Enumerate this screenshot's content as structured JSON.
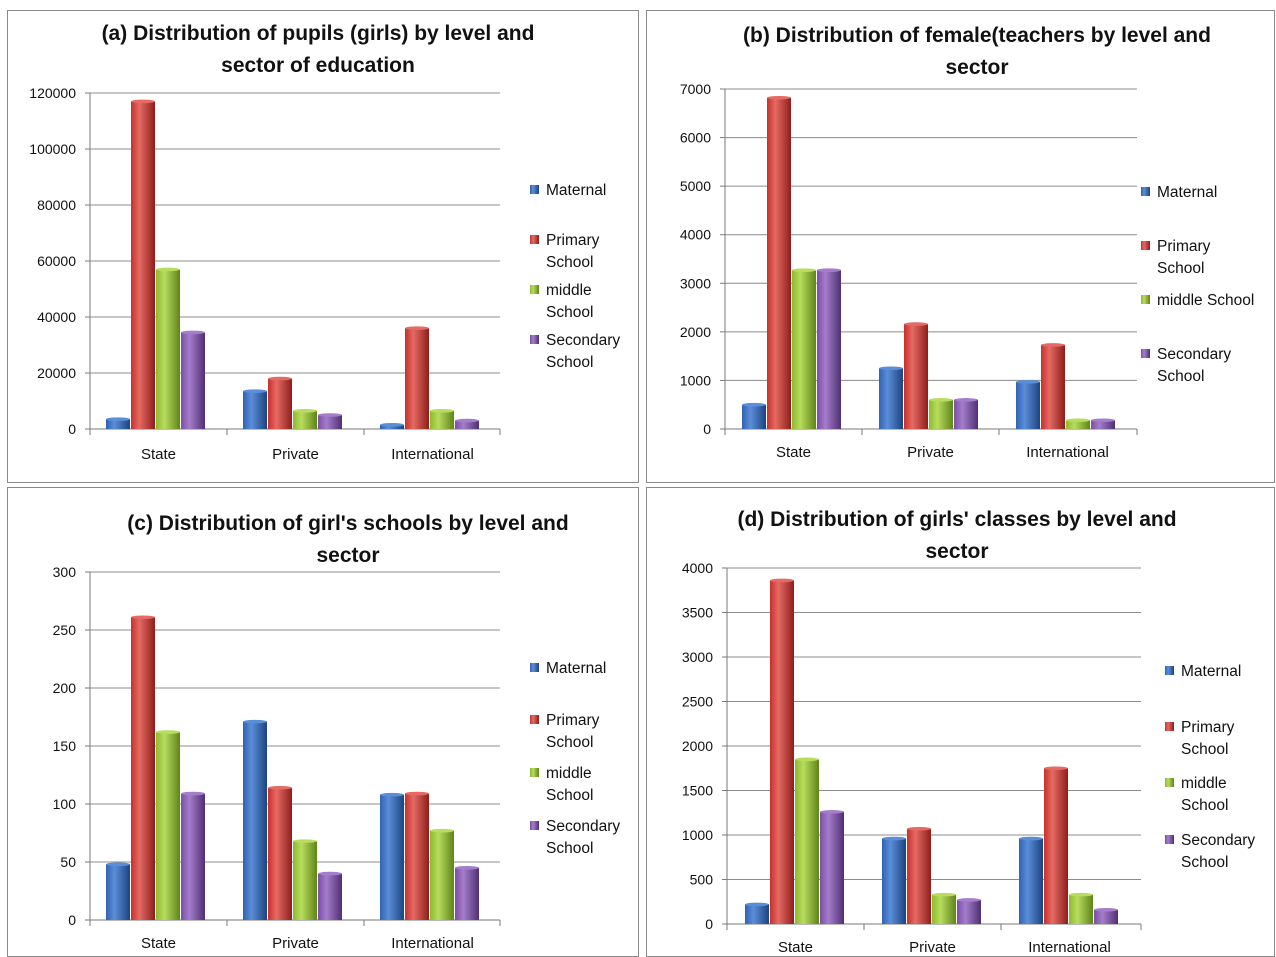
{
  "colors": {
    "Maternal": [
      "#2f62b3",
      "#5b8ed8",
      "#1d4380"
    ],
    "Primary School": [
      "#c9302c",
      "#e46a63",
      "#8e1e1b"
    ],
    "middle School": [
      "#8dba2d",
      "#b8dc5e",
      "#5f8419"
    ],
    "Secondary School": [
      "#7a4fa4",
      "#a47dcb",
      "#4f2f72"
    ]
  },
  "chart_data": [
    {
      "type": "bar",
      "title_lines": [
        "(a) Distribution of pupils (girls) by level and",
        "sector of education"
      ],
      "categories": [
        "State",
        "Private",
        "International"
      ],
      "ylim": [
        0,
        120000
      ],
      "yticks": [
        0,
        20000,
        40000,
        60000,
        80000,
        100000,
        120000
      ],
      "grid": true,
      "legend_position": "right",
      "legend_lines": [
        [
          "Maternal"
        ],
        [
          "Primary",
          "School"
        ],
        [
          "middle",
          "School"
        ],
        [
          "Secondary",
          "School"
        ]
      ],
      "series": [
        {
          "name": "Maternal",
          "values": [
            3500,
            13500,
            1500
          ]
        },
        {
          "name": "Primary School",
          "values": [
            117000,
            18000,
            36000
          ]
        },
        {
          "name": "middle School",
          "values": [
            57000,
            6500,
            6500
          ]
        },
        {
          "name": "Secondary School",
          "values": [
            34500,
            5000,
            3000
          ]
        }
      ]
    },
    {
      "type": "bar",
      "title_lines": [
        "(b) Distribution of female(teachers by level and",
        "sector"
      ],
      "categories": [
        "State",
        "Private",
        "International"
      ],
      "ylim": [
        0,
        7000
      ],
      "yticks": [
        0,
        1000,
        2000,
        3000,
        4000,
        5000,
        6000,
        7000
      ],
      "grid": true,
      "legend_position": "right",
      "legend_lines": [
        [
          "Maternal"
        ],
        [
          "Primary",
          "School"
        ],
        [
          "middle School"
        ],
        [
          "Secondary",
          "School"
        ]
      ],
      "series": [
        {
          "name": "Maternal",
          "values": [
            500,
            1250,
            970
          ]
        },
        {
          "name": "Primary School",
          "values": [
            6820,
            2160,
            1730
          ]
        },
        {
          "name": "middle School",
          "values": [
            3270,
            600,
            180
          ]
        },
        {
          "name": "Secondary School",
          "values": [
            3270,
            600,
            180
          ]
        }
      ]
    },
    {
      "type": "bar",
      "title_lines": [
        "(c) Distribution of girl's schools by level and",
        "sector"
      ],
      "categories": [
        "State",
        "Private",
        "International"
      ],
      "ylim": [
        0,
        300
      ],
      "yticks": [
        0,
        50,
        100,
        150,
        200,
        250,
        300
      ],
      "grid": true,
      "legend_position": "right",
      "legend_lines": [
        [
          "Maternal"
        ],
        [
          "Primary",
          "School"
        ],
        [
          "middle",
          "School"
        ],
        [
          "Secondary",
          "School"
        ]
      ],
      "series": [
        {
          "name": "Maternal",
          "values": [
            48,
            171,
            108
          ]
        },
        {
          "name": "Primary School",
          "values": [
            261,
            114,
            109
          ]
        },
        {
          "name": "middle School",
          "values": [
            162,
            68,
            77
          ]
        },
        {
          "name": "Secondary School",
          "values": [
            109,
            40,
            45
          ]
        }
      ]
    },
    {
      "type": "bar",
      "title_lines": [
        "(d) Distribution of girls' classes by level and",
        "sector"
      ],
      "categories": [
        "State",
        "Private",
        "International"
      ],
      "ylim": [
        0,
        4000
      ],
      "yticks": [
        0,
        500,
        1000,
        1500,
        2000,
        2500,
        3000,
        3500,
        4000
      ],
      "grid": true,
      "legend_position": "right",
      "legend_lines": [
        [
          "Maternal"
        ],
        [
          "Primary",
          "School"
        ],
        [
          "middle",
          "School"
        ],
        [
          "Secondary",
          "School"
        ]
      ],
      "series": [
        {
          "name": "Maternal",
          "values": [
            220,
            960,
            960
          ]
        },
        {
          "name": "Primary School",
          "values": [
            3860,
            1070,
            1750
          ]
        },
        {
          "name": "middle School",
          "values": [
            1850,
            330,
            330
          ]
        },
        {
          "name": "Secondary School",
          "values": [
            1260,
            270,
            160
          ]
        }
      ]
    }
  ]
}
